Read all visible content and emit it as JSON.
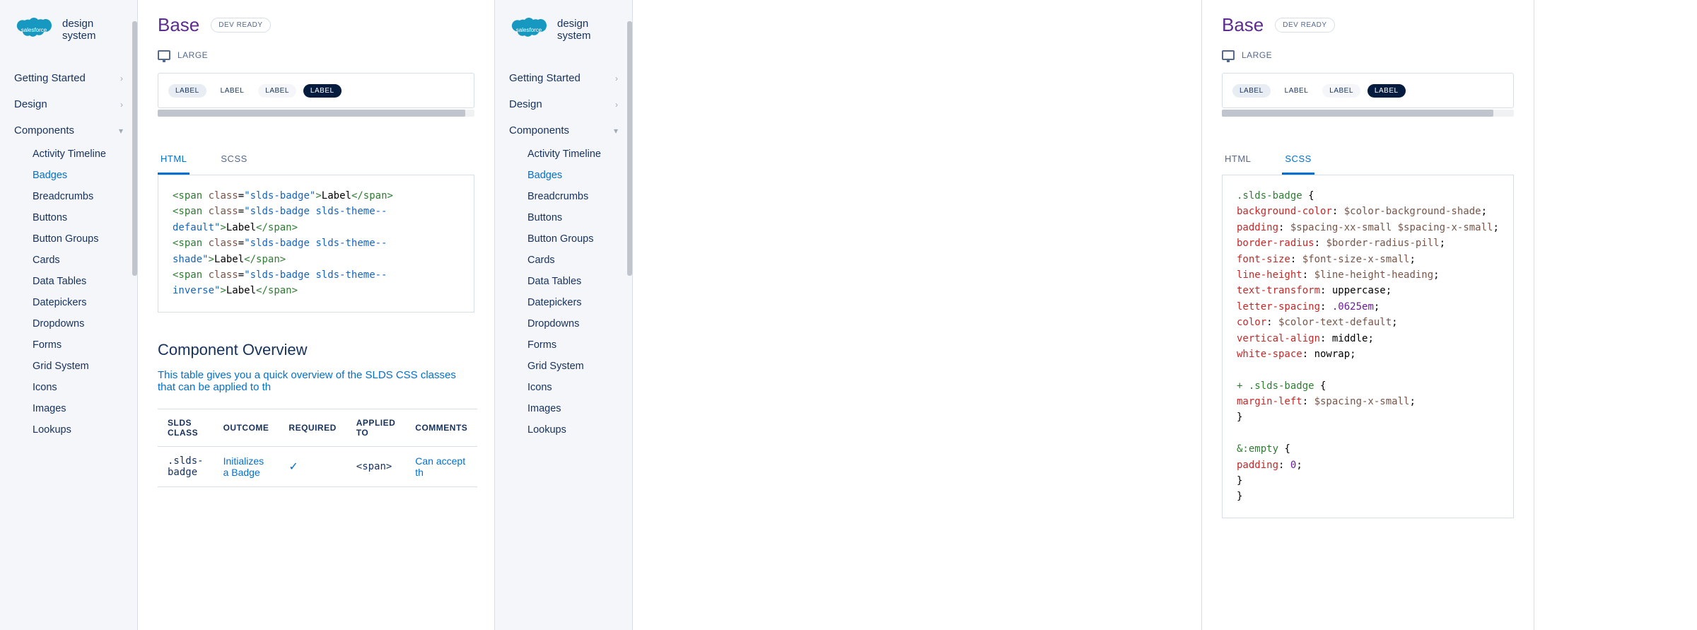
{
  "brand": "design system",
  "nav": {
    "top": [
      "Getting Started",
      "Design",
      "Components"
    ],
    "active": "Components",
    "sub": [
      "Activity Timeline",
      "Badges",
      "Breadcrumbs",
      "Buttons",
      "Button Groups",
      "Cards",
      "Data Tables",
      "Datepickers",
      "Dropdowns",
      "Forms",
      "Grid System",
      "Icons",
      "Images",
      "Lookups"
    ],
    "sub_active": "Badges"
  },
  "page": {
    "title": "Base",
    "badge": "DEV READY",
    "viewport": "LARGE",
    "labels": [
      "LABEL",
      "LABEL",
      "LABEL",
      "LABEL"
    ],
    "tab_html": "HTML",
    "tab_scss": "SCSS"
  },
  "html_code": [
    [
      [
        "tag",
        "<span"
      ],
      [
        "plain",
        " "
      ],
      [
        "attr",
        "class"
      ],
      [
        "punc",
        "="
      ],
      [
        "str",
        "\"slds-badge\""
      ],
      [
        "tag",
        ">"
      ],
      [
        "txt",
        "Label"
      ],
      [
        "tag",
        "</span>"
      ]
    ],
    [
      [
        "tag",
        "<span"
      ],
      [
        "plain",
        " "
      ],
      [
        "attr",
        "class"
      ],
      [
        "punc",
        "="
      ],
      [
        "str",
        "\"slds-badge slds-theme--default\""
      ],
      [
        "tag",
        ">"
      ],
      [
        "txt",
        "Label"
      ],
      [
        "tag",
        "</span>"
      ]
    ],
    [
      [
        "tag",
        "<span"
      ],
      [
        "plain",
        " "
      ],
      [
        "attr",
        "class"
      ],
      [
        "punc",
        "="
      ],
      [
        "str",
        "\"slds-badge slds-theme--shade\""
      ],
      [
        "tag",
        ">"
      ],
      [
        "txt",
        "Label"
      ],
      [
        "tag",
        "</span>"
      ]
    ],
    [
      [
        "tag",
        "<span"
      ],
      [
        "plain",
        " "
      ],
      [
        "attr",
        "class"
      ],
      [
        "punc",
        "="
      ],
      [
        "str",
        "\"slds-badge slds-theme--inverse\""
      ],
      [
        "tag",
        ">"
      ],
      [
        "txt",
        "Label"
      ],
      [
        "tag",
        "</span>"
      ]
    ]
  ],
  "scss_code": [
    [
      [
        "sel",
        ".slds-badge"
      ],
      [
        "plain",
        " "
      ],
      [
        "brace",
        "{"
      ]
    ],
    [
      [
        "plain",
        "  "
      ],
      [
        "prop",
        "background-color"
      ],
      [
        "plain",
        ": "
      ],
      [
        "var",
        "$color-background-shade"
      ],
      [
        "plain",
        ";"
      ]
    ],
    [
      [
        "plain",
        "  "
      ],
      [
        "prop",
        "padding"
      ],
      [
        "plain",
        ": "
      ],
      [
        "var",
        "$spacing-xx-small"
      ],
      [
        "plain",
        " "
      ],
      [
        "var",
        "$spacing-x-small"
      ],
      [
        "plain",
        ";"
      ]
    ],
    [
      [
        "plain",
        "  "
      ],
      [
        "prop",
        "border-radius"
      ],
      [
        "plain",
        ": "
      ],
      [
        "var",
        "$border-radius-pill"
      ],
      [
        "plain",
        ";"
      ]
    ],
    [
      [
        "plain",
        "  "
      ],
      [
        "prop",
        "font-size"
      ],
      [
        "plain",
        ": "
      ],
      [
        "var",
        "$font-size-x-small"
      ],
      [
        "plain",
        ";"
      ]
    ],
    [
      [
        "plain",
        "  "
      ],
      [
        "prop",
        "line-height"
      ],
      [
        "plain",
        ": "
      ],
      [
        "var",
        "$line-height-heading"
      ],
      [
        "plain",
        ";"
      ]
    ],
    [
      [
        "plain",
        "  "
      ],
      [
        "prop",
        "text-transform"
      ],
      [
        "plain",
        ": "
      ],
      [
        "plain",
        "uppercase"
      ],
      [
        "plain",
        ";"
      ]
    ],
    [
      [
        "plain",
        "  "
      ],
      [
        "prop",
        "letter-spacing"
      ],
      [
        "plain",
        ": "
      ],
      [
        "num",
        ".0625em"
      ],
      [
        "plain",
        ";"
      ]
    ],
    [
      [
        "plain",
        "  "
      ],
      [
        "prop",
        "color"
      ],
      [
        "plain",
        ": "
      ],
      [
        "var",
        "$color-text-default"
      ],
      [
        "plain",
        ";"
      ]
    ],
    [
      [
        "plain",
        "  "
      ],
      [
        "prop",
        "vertical-align"
      ],
      [
        "plain",
        ": "
      ],
      [
        "plain",
        "middle"
      ],
      [
        "plain",
        ";"
      ]
    ],
    [
      [
        "plain",
        "  "
      ],
      [
        "prop",
        "white-space"
      ],
      [
        "plain",
        ": "
      ],
      [
        "plain",
        "nowrap"
      ],
      [
        "plain",
        ";"
      ]
    ],
    [
      [
        "plain",
        ""
      ]
    ],
    [
      [
        "plain",
        "  "
      ],
      [
        "sel",
        "+ .slds-badge"
      ],
      [
        "plain",
        " "
      ],
      [
        "brace",
        "{"
      ]
    ],
    [
      [
        "plain",
        "    "
      ],
      [
        "prop",
        "margin-left"
      ],
      [
        "plain",
        ": "
      ],
      [
        "var",
        "$spacing-x-small"
      ],
      [
        "plain",
        ";"
      ]
    ],
    [
      [
        "plain",
        "  "
      ],
      [
        "brace",
        "}"
      ]
    ],
    [
      [
        "plain",
        ""
      ]
    ],
    [
      [
        "plain",
        "  "
      ],
      [
        "sel",
        "&:empty"
      ],
      [
        "plain",
        " "
      ],
      [
        "brace",
        "{"
      ]
    ],
    [
      [
        "plain",
        "    "
      ],
      [
        "prop",
        "padding"
      ],
      [
        "plain",
        ": "
      ],
      [
        "num",
        "0"
      ],
      [
        "plain",
        ";"
      ]
    ],
    [
      [
        "plain",
        "  "
      ],
      [
        "brace",
        "}"
      ]
    ],
    [
      [
        "brace",
        "}"
      ]
    ]
  ],
  "overview": {
    "title": "Component Overview",
    "desc": "This table gives you a quick overview of the SLDS CSS classes that can be applied to th",
    "cols": [
      "SLDS CLASS",
      "OUTCOME",
      "REQUIRED",
      "APPLIED TO",
      "COMMENTS"
    ],
    "row": {
      "class": ".slds-badge",
      "outcome": "Initializes a Badge",
      "required": true,
      "applied": "<span>",
      "comments": "Can accept th"
    }
  },
  "colors": {
    "brand_purple": "#5c2d91",
    "link_blue": "#0070d2",
    "text_dark": "#16325c",
    "text_muted": "#54698d",
    "border": "#d8dde6",
    "sidebar_bg": "#f4f6f9",
    "inverse_badge": "#061c3f",
    "logo_blue": "#1798c1"
  },
  "scroll_thumb_widths": {
    "panel1": "97%",
    "panel3": "93%"
  }
}
